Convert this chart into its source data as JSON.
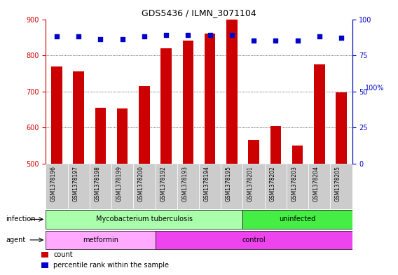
{
  "title": "GDS5436 / ILMN_3071104",
  "samples": [
    "GSM1378196",
    "GSM1378197",
    "GSM1378198",
    "GSM1378199",
    "GSM1378200",
    "GSM1378192",
    "GSM1378193",
    "GSM1378194",
    "GSM1378195",
    "GSM1378201",
    "GSM1378202",
    "GSM1378203",
    "GSM1378204",
    "GSM1378205"
  ],
  "counts": [
    770,
    755,
    655,
    653,
    715,
    820,
    840,
    860,
    900,
    565,
    605,
    550,
    775,
    698
  ],
  "percentiles": [
    88,
    88,
    86,
    86,
    88,
    89,
    89,
    89,
    89,
    85,
    85,
    85,
    88,
    87
  ],
  "ylim_left": [
    500,
    900
  ],
  "ylim_right": [
    0,
    100
  ],
  "yticks_left": [
    500,
    600,
    700,
    800,
    900
  ],
  "yticks_right": [
    0,
    25,
    50,
    75,
    100
  ],
  "bar_color": "#cc0000",
  "dot_color": "#0000cc",
  "infection_groups": [
    {
      "label": "Mycobacterium tuberculosis",
      "start": 0,
      "end": 9,
      "color": "#aaffaa"
    },
    {
      "label": "uninfected",
      "start": 9,
      "end": 14,
      "color": "#44ee44"
    }
  ],
  "agent_groups": [
    {
      "label": "metformin",
      "start": 0,
      "end": 5,
      "color": "#ffaaff"
    },
    {
      "label": "control",
      "start": 5,
      "end": 14,
      "color": "#ee44ee"
    }
  ],
  "xlabel_infection": "infection",
  "xlabel_agent": "agent",
  "legend_count_label": "count",
  "legend_percentile_label": "percentile rank within the sample",
  "tick_label_color_left": "#cc0000",
  "tick_label_color_right": "#0000cc",
  "bar_width": 0.5,
  "xtick_bg_color": "#cccccc"
}
